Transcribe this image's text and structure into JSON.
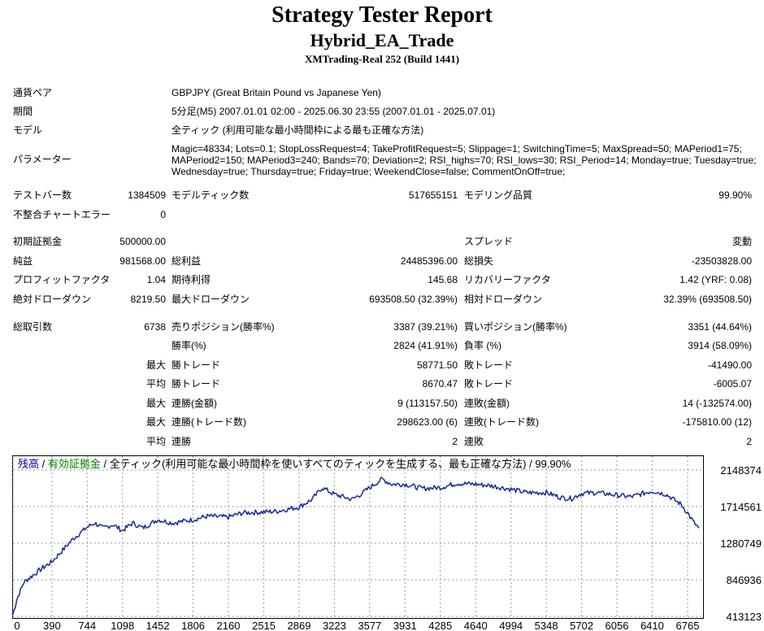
{
  "header": {
    "title": "Strategy Tester Report",
    "subtitle": "Hybrid_EA_Trade",
    "server": "XMTrading-Real 252 (Build 1441)"
  },
  "info": {
    "symbol_label": "通貨ペア",
    "symbol_value": "GBPJPY (Great Britain Pound vs Japanese Yen)",
    "period_label": "期間",
    "period_value": "5分足(M5) 2007.01.01 02:00 - 2025.06.30 23:55 (2007.01.01 - 2025.07.01)",
    "model_label": "モデル",
    "model_value": "全ティック (利用可能な最小時間枠による最も正確な方法)",
    "params_label": "パラメーター",
    "params_value": "Magic=48334; Lots=0.1; StopLossRequest=4; TakeProfitRequest=5; Slippage=1; SwitchingTime=5; MaxSpread=50; MAPeriod1=75; MAPeriod2=150; MAPeriod3=240; Bands=70; Deviation=2; RSI_highs=70; RSI_lows=30; RSI_Period=14; Monday=true; Tuesday=true; Wednesday=true; Thursday=true; Friday=true; WeekendClose=false; CommentOnOff=true;"
  },
  "stats": {
    "bars_label": "テストバー数",
    "bars_value": "1384509",
    "ticks_label": "モデルティック数",
    "ticks_value": "517655151",
    "quality_label": "モデリング品質",
    "quality_value": "99.90%",
    "mismatch_label": "不整合チャートエラー",
    "mismatch_value": "0",
    "deposit_label": "初期証拠金",
    "deposit_value": "500000.00",
    "spread_label": "スプレッド",
    "spread_value": "変動",
    "net_label": "純益",
    "net_value": "981568.00",
    "gross_profit_label": "総利益",
    "gross_profit_value": "24485396.00",
    "gross_loss_label": "総損失",
    "gross_loss_value": "-23503828.00",
    "pf_label": "プロフィットファクタ",
    "pf_value": "1.04",
    "payoff_label": "期待利得",
    "payoff_value": "145.68",
    "recovery_label": "リカバリーファクタ",
    "recovery_value": "1.42 (YRF: 0.08)",
    "abs_dd_label": "絶対ドローダウン",
    "abs_dd_value": "8219.50",
    "max_dd_label": "最大ドローダウン",
    "max_dd_value": "693508.50 (32.39%)",
    "rel_dd_label": "相対ドローダウン",
    "rel_dd_value": "32.39% (693508.50)",
    "trades_label": "総取引数",
    "trades_value": "6738",
    "short_label": "売りポジション(勝率%)",
    "short_value": "3387 (39.21%)",
    "long_label": "買いポジション(勝率%)",
    "long_value": "3351 (44.64%)",
    "win_pct_label": "勝率(%)",
    "win_pct_value": "2824 (41.91%)",
    "loss_pct_label": "負率 (%)",
    "loss_pct_value": "3914 (58.09%)",
    "max_label": "最大",
    "avg_label": "平均",
    "largest_win_label": "勝トレード",
    "largest_win_value": "58771.50",
    "largest_loss_label": "敗トレード",
    "largest_loss_value": "-41490.00",
    "avg_win_label": "勝トレード",
    "avg_win_value": "8670.47",
    "avg_loss_label": "敗トレード",
    "avg_loss_value": "-6005.07",
    "max_consec_win_label": "連勝(金額)",
    "max_consec_win_value": "9 (113157.50)",
    "max_consec_loss_label": "連敗(金額)",
    "max_consec_loss_value": "14 (-132574.00)",
    "max_consec_profit_label": "連勝(トレード数)",
    "max_consec_profit_value": "298623.00 (6)",
    "max_consec_lossamt_label": "連敗(トレード数)",
    "max_consec_lossamt_value": "-175810.00 (12)",
    "avg_consec_win_label": "連勝",
    "avg_consec_win_value": "2",
    "avg_consec_loss_label": "連敗",
    "avg_consec_loss_value": "2"
  },
  "chart_data": {
    "type": "line",
    "legend": {
      "balance": "残高",
      "equity": "有効証拠金",
      "rest": "全ティック(利用可能な最小時間枠を使いすべてのティックを生成する、最も正確な方法)",
      "quality": "99.90%",
      "sep": "/"
    },
    "line_color": "#1a2a9a",
    "x_ticks": [
      "0",
      "390",
      "744",
      "1098",
      "1452",
      "1806",
      "2160",
      "2515",
      "2869",
      "3223",
      "3577",
      "3931",
      "4285",
      "4640",
      "4994",
      "5348",
      "5702",
      "6056",
      "6410",
      "6765"
    ],
    "y_ticks": [
      "2148374",
      "1714561",
      "1280749",
      "846936",
      "413123"
    ],
    "xlim": [
      0,
      6920
    ],
    "ylim": [
      413123,
      2148374
    ],
    "points": [
      [
        0,
        440000
      ],
      [
        40,
        620000
      ],
      [
        110,
        820000
      ],
      [
        200,
        900000
      ],
      [
        300,
        990000
      ],
      [
        390,
        1060000
      ],
      [
        500,
        1200000
      ],
      [
        600,
        1330000
      ],
      [
        744,
        1470000
      ],
      [
        820,
        1520000
      ],
      [
        900,
        1460000
      ],
      [
        1000,
        1500000
      ],
      [
        1098,
        1430000
      ],
      [
        1200,
        1520000
      ],
      [
        1300,
        1460000
      ],
      [
        1452,
        1560000
      ],
      [
        1600,
        1520000
      ],
      [
        1806,
        1560000
      ],
      [
        1950,
        1600000
      ],
      [
        2160,
        1590000
      ],
      [
        2300,
        1640000
      ],
      [
        2515,
        1650000
      ],
      [
        2650,
        1660000
      ],
      [
        2869,
        1710000
      ],
      [
        3000,
        1800000
      ],
      [
        3100,
        1940000
      ],
      [
        3223,
        1860000
      ],
      [
        3400,
        1800000
      ],
      [
        3500,
        1870000
      ],
      [
        3577,
        1940000
      ],
      [
        3700,
        2040000
      ],
      [
        3800,
        1980000
      ],
      [
        3931,
        1980000
      ],
      [
        4100,
        1930000
      ],
      [
        4285,
        1940000
      ],
      [
        4450,
        1990000
      ],
      [
        4640,
        1980000
      ],
      [
        4800,
        1960000
      ],
      [
        4994,
        1920000
      ],
      [
        5150,
        1880000
      ],
      [
        5348,
        1880000
      ],
      [
        5500,
        1820000
      ],
      [
        5600,
        1810000
      ],
      [
        5702,
        1870000
      ],
      [
        5850,
        1880000
      ],
      [
        6056,
        1850000
      ],
      [
        6200,
        1830000
      ],
      [
        6410,
        1900000
      ],
      [
        6550,
        1860000
      ],
      [
        6700,
        1740000
      ],
      [
        6765,
        1640000
      ],
      [
        6830,
        1520000
      ],
      [
        6880,
        1460000
      ]
    ]
  }
}
